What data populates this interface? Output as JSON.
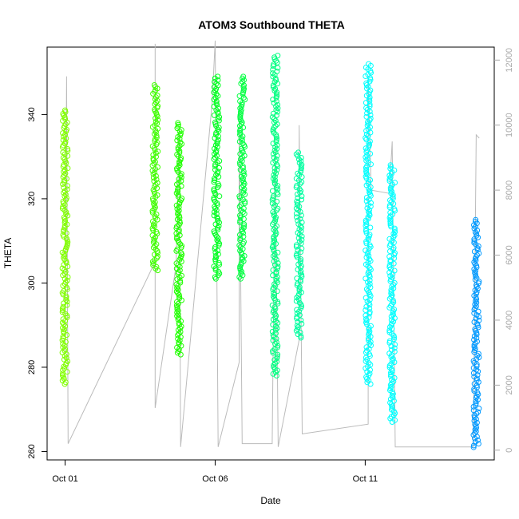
{
  "chart_data": {
    "type": "scatter",
    "title": "ATOM3 Southbound THETA",
    "xlabel": "Date",
    "ylabel": "THETA",
    "x_tick_labels": [
      "Oct 01",
      "Oct 06",
      "Oct 11"
    ],
    "x_tick_values": [
      1,
      6,
      11
    ],
    "xlim": [
      0.4,
      15.3
    ],
    "ylim": [
      258,
      356
    ],
    "y_ticks": [
      260,
      280,
      300,
      320,
      340
    ],
    "y2_ticks": [
      0,
      2000,
      4000,
      6000,
      8000,
      10000,
      12000
    ],
    "y2lim": [
      -300,
      12400
    ],
    "grid": false,
    "point_series": [
      {
        "x": 1.0,
        "ymin": 276,
        "ymax": 341,
        "color": "#80ff00"
      },
      {
        "x": 4.0,
        "ymin": 303,
        "ymax": 347,
        "color": "#40ff00"
      },
      {
        "x": 4.8,
        "ymin": 283,
        "ymax": 338,
        "color": "#20ff00"
      },
      {
        "x": 6.05,
        "ymin": 301,
        "ymax": 349,
        "color": "#00ff20"
      },
      {
        "x": 6.9,
        "ymin": 301,
        "ymax": 349,
        "color": "#00ff40"
      },
      {
        "x": 8.0,
        "ymin": 278,
        "ymax": 354,
        "color": "#00ff80"
      },
      {
        "x": 8.8,
        "ymin": 287,
        "ymax": 331,
        "color": "#00ffa0"
      },
      {
        "x": 11.1,
        "ymin": 276,
        "ymax": 352,
        "color": "#00ffff"
      },
      {
        "x": 11.9,
        "ymin": 267,
        "ymax": 328,
        "color": "#00ffff"
      },
      {
        "x": 14.7,
        "ymin": 261,
        "ymax": 315,
        "color": "#0099ff"
      }
    ],
    "line_series": {
      "name": "",
      "color": "#bbbbbb",
      "points": [
        {
          "x": 1.0,
          "y": 3000
        },
        {
          "x": 1.05,
          "y": 11500
        },
        {
          "x": 1.1,
          "y": 200
        },
        {
          "x": 4.0,
          "y": 5800
        },
        {
          "x": 4.0,
          "y": 12500
        },
        {
          "x": 4.0,
          "y": 1300
        },
        {
          "x": 4.7,
          "y": 5700
        },
        {
          "x": 4.8,
          "y": 9900
        },
        {
          "x": 4.85,
          "y": 100
        },
        {
          "x": 5.9,
          "y": 10700
        },
        {
          "x": 6.0,
          "y": 12600
        },
        {
          "x": 6.1,
          "y": 100
        },
        {
          "x": 6.8,
          "y": 2700
        },
        {
          "x": 6.8,
          "y": 10600
        },
        {
          "x": 6.9,
          "y": 200
        },
        {
          "x": 7.9,
          "y": 200
        },
        {
          "x": 8.0,
          "y": 9400
        },
        {
          "x": 8.1,
          "y": 100
        },
        {
          "x": 8.8,
          "y": 3400
        },
        {
          "x": 8.8,
          "y": 10000
        },
        {
          "x": 8.9,
          "y": 500
        },
        {
          "x": 11.1,
          "y": 800
        },
        {
          "x": 11.1,
          "y": 11500
        },
        {
          "x": 11.2,
          "y": 8000
        },
        {
          "x": 11.8,
          "y": 7900
        },
        {
          "x": 11.9,
          "y": 9500
        },
        {
          "x": 12.0,
          "y": 100
        },
        {
          "x": 14.6,
          "y": 100
        },
        {
          "x": 14.7,
          "y": 9700
        },
        {
          "x": 14.8,
          "y": 9600
        }
      ]
    }
  }
}
